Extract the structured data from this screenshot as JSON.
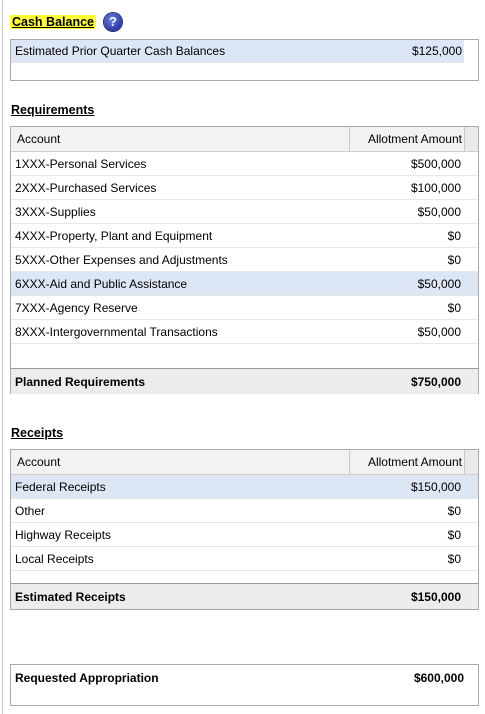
{
  "cash_balance": {
    "title": "Cash Balance",
    "help_icon": "question-mark-icon",
    "row_label": "Estimated Prior Quarter Cash Balances",
    "row_value": "$125,000"
  },
  "requirements": {
    "title": "Requirements",
    "col_account": "Account",
    "col_amount": "Allotment Amount",
    "rows": [
      {
        "account": "1XXX-Personal Services",
        "amount": "$500,000"
      },
      {
        "account": "2XXX-Purchased Services",
        "amount": "$100,000"
      },
      {
        "account": "3XXX-Supplies",
        "amount": "$50,000"
      },
      {
        "account": "4XXX-Property, Plant and Equipment",
        "amount": "$0"
      },
      {
        "account": "5XXX-Other Expenses and Adjustments",
        "amount": "$0"
      },
      {
        "account": "6XXX-Aid and Public Assistance",
        "amount": "$50,000"
      },
      {
        "account": "7XXX-Agency Reserve",
        "amount": "$0"
      },
      {
        "account": "8XXX-Intergovernmental Transactions",
        "amount": "$50,000"
      }
    ],
    "total_label": "Planned Requirements",
    "total_value": "$750,000"
  },
  "receipts": {
    "title": "Receipts",
    "col_account": "Account",
    "col_amount": "Allotment Amount",
    "rows": [
      {
        "account": "Federal Receipts",
        "amount": "$150,000"
      },
      {
        "account": "Other",
        "amount": "$0"
      },
      {
        "account": "Highway Receipts",
        "amount": "$0"
      },
      {
        "account": "Local Receipts",
        "amount": "$0"
      }
    ],
    "total_label": "Estimated Receipts",
    "total_value": "$150,000"
  },
  "appropriation": {
    "label": "Requested Appropriation",
    "value": "$600,000"
  },
  "colors": {
    "highlight": "#ffff33",
    "selected_row": "#dce6f5",
    "header_bg": "#f2f2f2",
    "total_bg": "#ececec"
  }
}
